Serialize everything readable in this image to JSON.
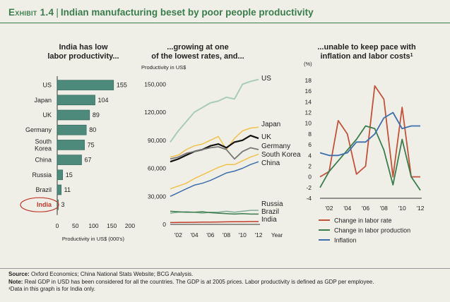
{
  "header": {
    "exhibit": "Exhibit 1.4",
    "title": "Indian manufacturing beset by poor people productivity"
  },
  "colors": {
    "bar_fill": "#4d8a7c",
    "bar_stroke": "#2f6459",
    "accent_green": "#3a7d4c",
    "circle": "#c0392b",
    "us": "#a9ccb6",
    "japan": "#f0c14b",
    "uk": "#111111",
    "germany": "#777777",
    "south_korea": "#f0c14b",
    "china": "#3d6fad",
    "russia": "#7fae98",
    "brazil": "#3a7d4c",
    "india": "#c0392b",
    "labor_rate": "#c0533a",
    "labor_production": "#3a7d4c",
    "inflation": "#3d6fad"
  },
  "chart_data": [
    {
      "type": "bar",
      "orientation": "horizontal",
      "title": "India has low labor productivity...",
      "title_lines": [
        "India has low",
        "labor productivity..."
      ],
      "categories": [
        "US",
        "Japan",
        "UK",
        "Germany",
        "South Korea",
        "China",
        "Russia",
        "Brazil",
        "India"
      ],
      "category_lines": [
        [
          "US"
        ],
        [
          "Japan"
        ],
        [
          "UK"
        ],
        [
          "Germany"
        ],
        [
          "South",
          "Korea"
        ],
        [
          "China"
        ],
        [
          "Russia"
        ],
        [
          "Brazil"
        ],
        [
          "India"
        ]
      ],
      "values": [
        155,
        104,
        89,
        80,
        75,
        67,
        15,
        11,
        3
      ],
      "xlabel": "Productivity in US$ (000's)",
      "xlim": [
        0,
        200
      ],
      "xticks": [
        0,
        50,
        100,
        150,
        200
      ],
      "highlight": "India"
    },
    {
      "type": "line",
      "title": "...growing at one of the lowest rates, and...",
      "title_lines": [
        "...growing at one",
        "of the lowest rates, and..."
      ],
      "ylabel": "Productivity in US$",
      "xlabel": "Year",
      "x": [
        2001,
        2002,
        2003,
        2004,
        2005,
        2006,
        2007,
        2008,
        2009,
        2010,
        2011,
        2012
      ],
      "xticks": [
        "'02",
        "'04",
        "'06",
        "'08",
        "'10",
        "'12"
      ],
      "xtick_values": [
        2002,
        2004,
        2006,
        2008,
        2010,
        2012
      ],
      "ylim": [
        0,
        160000
      ],
      "yticks": [
        0,
        30000,
        60000,
        90000,
        120000,
        150000
      ],
      "ytick_labels": [
        "0",
        "30,000",
        "60,000",
        "90,000",
        "120,000",
        "150,000"
      ],
      "series": [
        {
          "name": "US",
          "color_key": "us",
          "width": 2,
          "values": [
            88000,
            100000,
            110000,
            120000,
            125000,
            130000,
            132000,
            136000,
            134000,
            150000,
            153000,
            155000
          ]
        },
        {
          "name": "Japan",
          "color_key": "japan",
          "width": 1.5,
          "values": [
            72000,
            74000,
            80000,
            84000,
            86000,
            90000,
            94000,
            80000,
            92000,
            100000,
            103000,
            104000
          ]
        },
        {
          "name": "UK",
          "color_key": "uk",
          "width": 2.2,
          "values": [
            67000,
            70000,
            74000,
            78000,
            80000,
            84000,
            86000,
            82000,
            88000,
            90000,
            95000,
            92000
          ]
        },
        {
          "name": "Germany",
          "color_key": "germany",
          "width": 1.8,
          "values": [
            70000,
            72000,
            76000,
            78000,
            80000,
            82000,
            83000,
            80000,
            70000,
            78000,
            82000,
            80000
          ]
        },
        {
          "name": "South Korea",
          "color_key": "south_korea",
          "width": 1.5,
          "values": [
            38000,
            41000,
            44000,
            49000,
            53000,
            57000,
            61000,
            64000,
            64000,
            68000,
            72000,
            75000
          ]
        },
        {
          "name": "China",
          "color_key": "china",
          "width": 1.5,
          "values": [
            30000,
            34000,
            38000,
            42000,
            44000,
            47000,
            51000,
            55000,
            57000,
            60000,
            64000,
            67000
          ]
        },
        {
          "name": "Russia",
          "color_key": "russia",
          "width": 1.5,
          "values": [
            12000,
            13000,
            13500,
            13000,
            12000,
            13000,
            13000,
            14000,
            13000,
            14000,
            15000,
            15000
          ]
        },
        {
          "name": "Brazil",
          "color_key": "brazil",
          "width": 1.5,
          "values": [
            14000,
            13500,
            13000,
            13000,
            13500,
            12500,
            12000,
            11500,
            11000,
            11500,
            11000,
            11000
          ]
        },
        {
          "name": "India",
          "color_key": "india",
          "width": 1.5,
          "values": [
            2000,
            2100,
            2200,
            2300,
            2400,
            2500,
            2600,
            2700,
            2800,
            2900,
            3000,
            3000
          ]
        }
      ],
      "label_order": [
        "US",
        "Japan",
        "UK",
        "Germany",
        "South Korea",
        "China",
        "Russia",
        "Brazil",
        "India"
      ]
    },
    {
      "type": "line",
      "title": "...unable to keep pace with inflation and labor costs¹",
      "title_lines": [
        "...unable to keep pace with",
        "inflation and labor costs"
      ],
      "title_superscript": "1",
      "ylabel": "(%)",
      "x": [
        2001,
        2002,
        2003,
        2004,
        2005,
        2006,
        2007,
        2008,
        2009,
        2010,
        2011,
        2012
      ],
      "xticks": [
        "'02",
        "'04",
        "'06",
        "'08",
        "'10",
        "'12"
      ],
      "xtick_values": [
        2002,
        2004,
        2006,
        2008,
        2010,
        2012
      ],
      "ylim": [
        -4,
        18
      ],
      "yticks": [
        -4,
        -2,
        0,
        2,
        4,
        6,
        8,
        10,
        12,
        14,
        16,
        18
      ],
      "series": [
        {
          "name": "Change in labor rate",
          "color_key": "labor_rate",
          "values": [
            0,
            1,
            10.5,
            8,
            0.5,
            2,
            17,
            14.5,
            0,
            13,
            0,
            0
          ]
        },
        {
          "name": "Change in labor production",
          "color_key": "labor_production",
          "values": [
            -2,
            1,
            3,
            5,
            7,
            9.5,
            9,
            5,
            -1.5,
            7,
            0,
            -2.5
          ]
        },
        {
          "name": "Inflation",
          "color_key": "inflation",
          "values": [
            4.5,
            4,
            4,
            4.5,
            6.5,
            6.5,
            8,
            11,
            12,
            9,
            9.5,
            9.5
          ]
        }
      ],
      "legend_position": "bottom"
    }
  ],
  "footer": {
    "source_label": "Source:",
    "source_text": "Oxford Economics; China National Stats Website; BCG Analysis.",
    "note_label": "Note:",
    "note_text": "Real GDP in USD has been considered for all the countries. The GDP is at 2005 prices. Labor productivity is defined as GDP per employee.",
    "footnote": "¹Data in this graph is for India only."
  }
}
